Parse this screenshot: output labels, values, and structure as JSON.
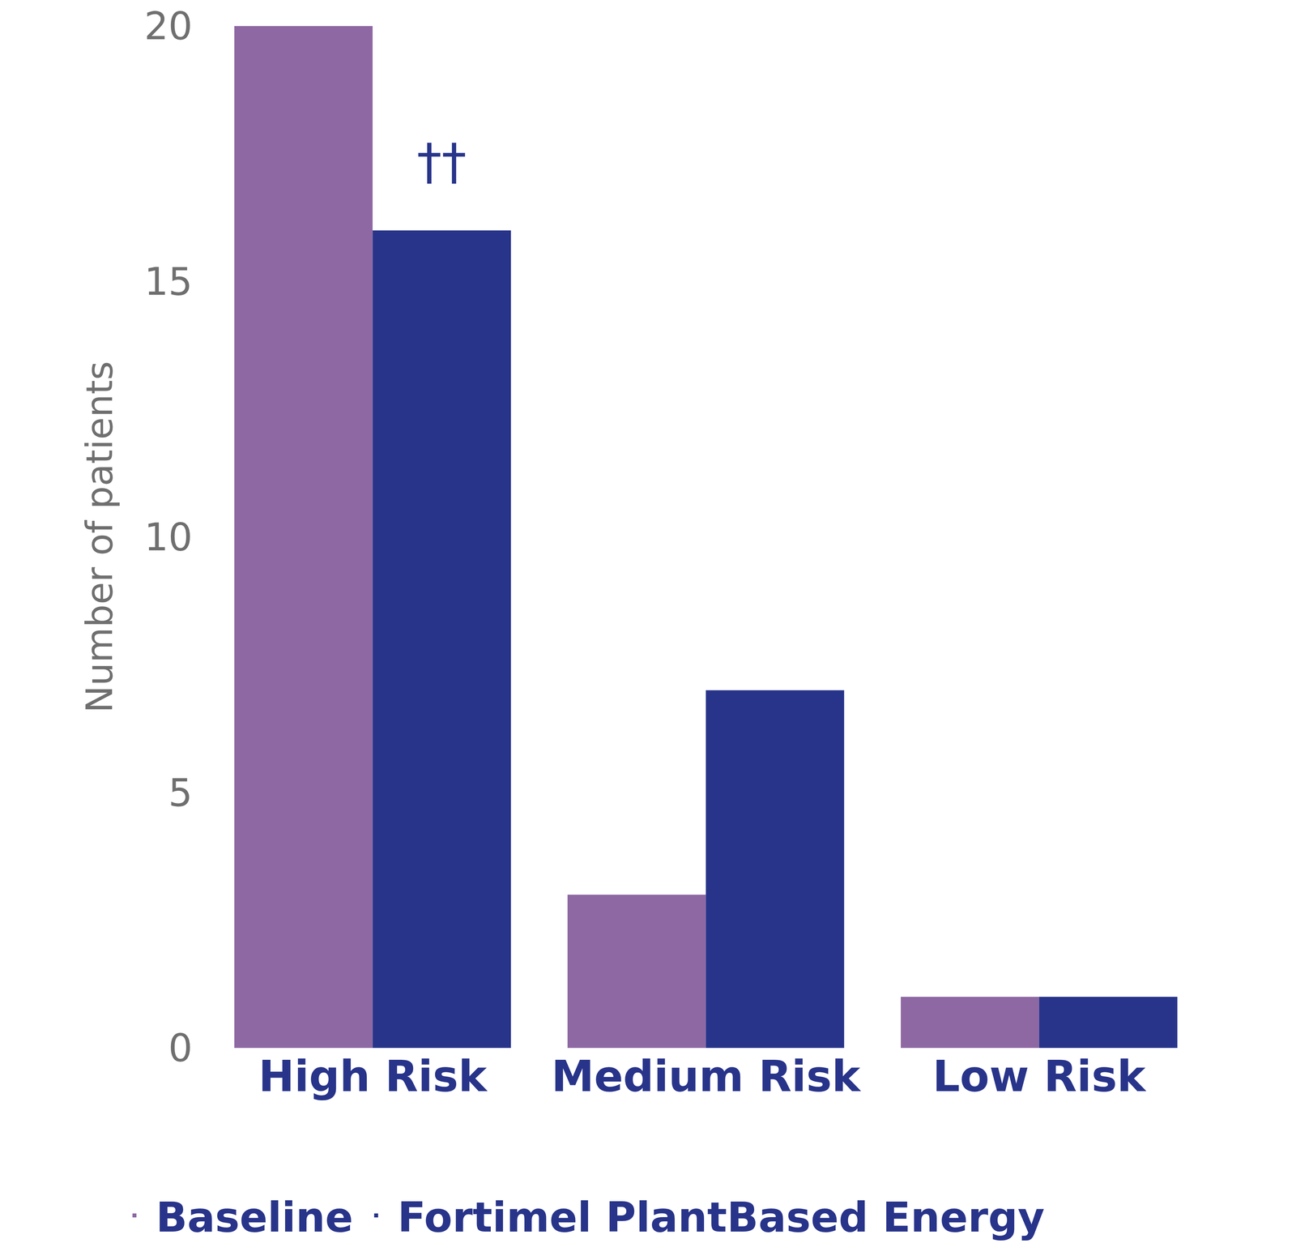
{
  "chart_data": {
    "type": "bar",
    "y_label": "Number of patients",
    "categories": [
      "High Risk",
      "Medium Risk",
      "Low Risk"
    ],
    "series": [
      {
        "name": "Baseline",
        "color": "#8e68a3",
        "values": [
          20,
          3,
          1
        ]
      },
      {
        "name": "Fortimel PlantBased Energy",
        "color": "#28348a",
        "values": [
          16,
          7,
          1
        ]
      }
    ],
    "annotations": [
      {
        "text": "††",
        "category": "High Risk",
        "series": "Fortimel PlantBased Energy"
      }
    ],
    "ylim": [
      0,
      20
    ],
    "yticks": [
      0,
      5,
      10,
      15,
      20
    ],
    "grid": false,
    "legend": "bottom"
  }
}
